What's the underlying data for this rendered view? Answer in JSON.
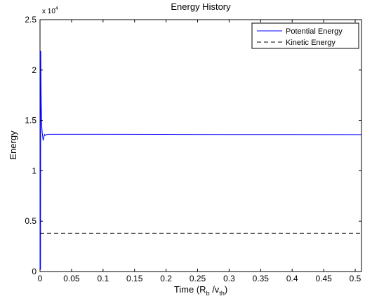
{
  "chart_data": {
    "type": "line",
    "title": "Energy History",
    "xlabel_main": "Time (R",
    "xlabel_sub1": "b",
    "xlabel_mid": " /v",
    "xlabel_sub2": "th",
    "xlabel_end": ")",
    "ylabel": "Energy",
    "y_multiplier": "x 10",
    "y_multiplier_exp": "4",
    "xlim": [
      0,
      0.51
    ],
    "ylim": [
      0,
      25000
    ],
    "x_ticks": [
      0,
      0.05,
      0.1,
      0.15,
      0.2,
      0.25,
      0.3,
      0.35,
      0.4,
      0.45,
      0.5
    ],
    "x_tick_labels": [
      "0",
      "0.05",
      "0.1",
      "0.15",
      "0.2",
      "0.25",
      "0.3",
      "0.35",
      "0.4",
      "0.45",
      "0.5"
    ],
    "y_ticks": [
      0,
      5000,
      10000,
      15000,
      20000,
      25000
    ],
    "y_tick_labels": [
      "0",
      "0.5",
      "1",
      "1.5",
      "2",
      "2.5"
    ],
    "legend_position": "top-right",
    "series": [
      {
        "name": "Potential Energy",
        "color": "#0000ff",
        "style": "solid",
        "x": [
          0,
          0.0004,
          0.0008,
          0.0012,
          0.0016,
          0.002,
          0.0025,
          0.003,
          0.0035,
          0.004,
          0.005,
          0.006,
          0.007,
          0.008,
          0.009,
          0.01,
          0.015,
          0.02,
          0.05,
          0.1,
          0.2,
          0.3,
          0.4,
          0.5,
          0.51
        ],
        "y": [
          0,
          21900,
          200,
          21900,
          18500,
          16500,
          15000,
          14200,
          13800,
          13500,
          13000,
          13300,
          13600,
          13500,
          13550,
          13600,
          13620,
          13620,
          13620,
          13620,
          13610,
          13600,
          13600,
          13590,
          13590
        ]
      },
      {
        "name": "Kinetic Energy",
        "color": "#000000",
        "style": "dashed",
        "x": [
          0,
          0.51
        ],
        "y": [
          3800,
          3800
        ]
      }
    ]
  }
}
